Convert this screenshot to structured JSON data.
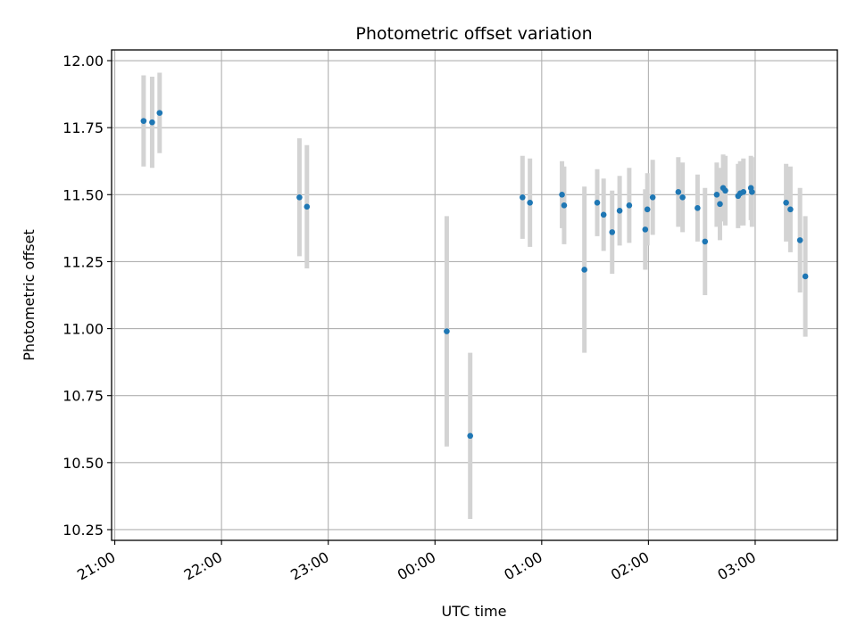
{
  "chart_data": {
    "type": "scatter",
    "title": "Photometric offset variation",
    "xlabel": "UTC time",
    "ylabel": "Photometric offset",
    "grid": true,
    "x_unit": "UTC time, hours after 21:00 on the first night (values beyond 24 fall on the next day)",
    "xlim": [
      20.97,
      27.77
    ],
    "ylim": [
      10.21,
      12.04
    ],
    "x_ticks": [
      21,
      22,
      23,
      24,
      25,
      26,
      27
    ],
    "x_tick_labels": [
      "21:00",
      "22:00",
      "23:00",
      "00:00",
      "01:00",
      "02:00",
      "03:00"
    ],
    "y_ticks": [
      10.25,
      10.5,
      10.75,
      11.0,
      11.25,
      11.5,
      11.75,
      12.0
    ],
    "y_tick_labels": [
      "10.25",
      "10.50",
      "10.75",
      "11.00",
      "11.25",
      "11.50",
      "11.75",
      "12.00"
    ],
    "point_color": "#1f77b4",
    "errorbar_color": "#d3d3d3",
    "points": [
      {
        "x": 21.27,
        "y": 11.775,
        "err": 0.17
      },
      {
        "x": 21.35,
        "y": 11.77,
        "err": 0.17
      },
      {
        "x": 21.42,
        "y": 11.805,
        "err": 0.15
      },
      {
        "x": 22.73,
        "y": 11.49,
        "err": 0.22
      },
      {
        "x": 22.8,
        "y": 11.455,
        "err": 0.23
      },
      {
        "x": 24.11,
        "y": 10.99,
        "err": 0.43
      },
      {
        "x": 24.33,
        "y": 10.6,
        "err": 0.31
      },
      {
        "x": 24.82,
        "y": 11.49,
        "err": 0.155
      },
      {
        "x": 24.89,
        "y": 11.47,
        "err": 0.165
      },
      {
        "x": 25.19,
        "y": 11.5,
        "err": 0.125
      },
      {
        "x": 25.21,
        "y": 11.46,
        "err": 0.145
      },
      {
        "x": 25.4,
        "y": 11.22,
        "err": 0.31
      },
      {
        "x": 25.52,
        "y": 11.47,
        "err": 0.125
      },
      {
        "x": 25.58,
        "y": 11.425,
        "err": 0.135
      },
      {
        "x": 25.66,
        "y": 11.36,
        "err": 0.155
      },
      {
        "x": 25.73,
        "y": 11.44,
        "err": 0.13
      },
      {
        "x": 25.82,
        "y": 11.46,
        "err": 0.14
      },
      {
        "x": 25.97,
        "y": 11.37,
        "err": 0.15
      },
      {
        "x": 25.99,
        "y": 11.445,
        "err": 0.135
      },
      {
        "x": 26.04,
        "y": 11.49,
        "err": 0.14
      },
      {
        "x": 26.28,
        "y": 11.51,
        "err": 0.13
      },
      {
        "x": 26.32,
        "y": 11.49,
        "err": 0.13
      },
      {
        "x": 26.46,
        "y": 11.45,
        "err": 0.125
      },
      {
        "x": 26.53,
        "y": 11.325,
        "err": 0.2
      },
      {
        "x": 26.64,
        "y": 11.5,
        "err": 0.12
      },
      {
        "x": 26.67,
        "y": 11.465,
        "err": 0.135
      },
      {
        "x": 26.7,
        "y": 11.525,
        "err": 0.125
      },
      {
        "x": 26.72,
        "y": 11.515,
        "err": 0.13
      },
      {
        "x": 26.84,
        "y": 11.495,
        "err": 0.12
      },
      {
        "x": 26.86,
        "y": 11.505,
        "err": 0.12
      },
      {
        "x": 26.89,
        "y": 11.51,
        "err": 0.125
      },
      {
        "x": 26.96,
        "y": 11.525,
        "err": 0.12
      },
      {
        "x": 26.97,
        "y": 11.51,
        "err": 0.13
      },
      {
        "x": 27.29,
        "y": 11.47,
        "err": 0.145
      },
      {
        "x": 27.33,
        "y": 11.445,
        "err": 0.16
      },
      {
        "x": 27.42,
        "y": 11.33,
        "err": 0.195
      },
      {
        "x": 27.47,
        "y": 11.195,
        "err": 0.225
      }
    ]
  }
}
